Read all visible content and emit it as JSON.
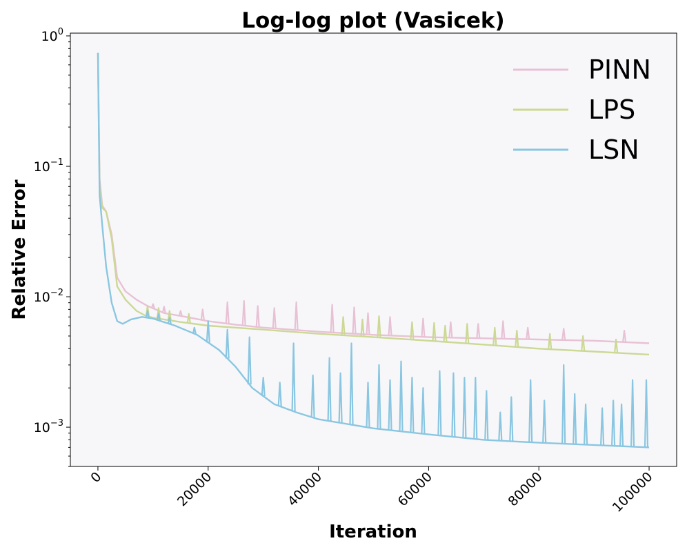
{
  "chart_data": {
    "type": "line",
    "title": "Log-log plot (Vasicek)",
    "xlabel": "Iteration",
    "ylabel": "Relative Error",
    "xlim": [
      -5000,
      105000
    ],
    "ylim": [
      0.0005,
      1.05
    ],
    "yscale": "log",
    "grid": false,
    "legend_position": "top-right",
    "x_ticks": [
      "0",
      "20000",
      "40000",
      "60000",
      "80000",
      "100000"
    ],
    "y_ticks": [
      {
        "base": "10",
        "exp": "0"
      },
      {
        "base": "10",
        "exp": "−1"
      },
      {
        "base": "10",
        "exp": "−2"
      },
      {
        "base": "10",
        "exp": "−3"
      }
    ],
    "series": [
      {
        "name": "PINN",
        "color": "#e8c1d5",
        "x": [
          0,
          300,
          800,
          1500,
          2500,
          3500,
          5000,
          7000,
          9000,
          12000,
          16000,
          20000,
          25000,
          30000,
          35000,
          40000,
          50000,
          60000,
          70000,
          80000,
          90000,
          100000
        ],
        "y": [
          0.74,
          0.08,
          0.05,
          0.045,
          0.03,
          0.014,
          0.011,
          0.0095,
          0.0085,
          0.0075,
          0.007,
          0.0065,
          0.0061,
          0.0058,
          0.0056,
          0.0054,
          0.0051,
          0.0049,
          0.0048,
          0.0047,
          0.0046,
          0.0044
        ],
        "spikes": [
          [
            10000,
            0.0088
          ],
          [
            12000,
            0.0084
          ],
          [
            15000,
            0.0078
          ],
          [
            19000,
            0.008
          ],
          [
            23500,
            0.0091
          ],
          [
            26500,
            0.0093
          ],
          [
            29000,
            0.0085
          ],
          [
            32000,
            0.0082
          ],
          [
            36000,
            0.0091
          ],
          [
            42500,
            0.0087
          ],
          [
            46500,
            0.0083
          ],
          [
            49000,
            0.0075
          ],
          [
            53000,
            0.007
          ],
          [
            59000,
            0.0068
          ],
          [
            64000,
            0.0064
          ],
          [
            69000,
            0.0062
          ],
          [
            73500,
            0.0065
          ],
          [
            78000,
            0.0058
          ],
          [
            84500,
            0.0057
          ],
          [
            95500,
            0.0055
          ]
        ]
      },
      {
        "name": "LPS",
        "color": "#ccd894",
        "x": [
          0,
          300,
          800,
          1500,
          2500,
          3500,
          5000,
          7000,
          8500,
          10000,
          15000,
          20000,
          30000,
          40000,
          50000,
          60000,
          70000,
          80000,
          90000,
          100000
        ],
        "y": [
          0.74,
          0.07,
          0.048,
          0.045,
          0.028,
          0.012,
          0.0095,
          0.0078,
          0.0072,
          0.0069,
          0.0064,
          0.006,
          0.0056,
          0.0052,
          0.0049,
          0.0046,
          0.0043,
          0.004,
          0.0038,
          0.0036
        ],
        "spikes": [
          [
            9000,
            0.0085
          ],
          [
            11000,
            0.0082
          ],
          [
            13000,
            0.0078
          ],
          [
            16500,
            0.0074
          ],
          [
            44500,
            0.007
          ],
          [
            48000,
            0.0067
          ],
          [
            51000,
            0.0071
          ],
          [
            57000,
            0.0064
          ],
          [
            61000,
            0.0063
          ],
          [
            63000,
            0.006
          ],
          [
            67000,
            0.0062
          ],
          [
            72000,
            0.0058
          ],
          [
            76000,
            0.0055
          ],
          [
            82000,
            0.0052
          ],
          [
            88000,
            0.005
          ],
          [
            94000,
            0.0047
          ]
        ]
      },
      {
        "name": "LSN",
        "color": "#8ac6e1",
        "x": [
          0,
          300,
          800,
          1500,
          2500,
          3500,
          4500,
          6000,
          8000,
          10000,
          14000,
          18000,
          22000,
          25000,
          28000,
          32000,
          36000,
          40000,
          50000,
          60000,
          70000,
          80000,
          90000,
          100000
        ],
        "y": [
          0.74,
          0.06,
          0.035,
          0.017,
          0.009,
          0.0065,
          0.0062,
          0.0067,
          0.007,
          0.0068,
          0.006,
          0.0051,
          0.0039,
          0.0029,
          0.002,
          0.0015,
          0.0013,
          0.00115,
          0.00098,
          0.00088,
          0.0008,
          0.00076,
          0.00073,
          0.0007
        ],
        "spikes": [
          [
            9000,
            0.0078
          ],
          [
            11000,
            0.0074
          ],
          [
            13000,
            0.0069
          ],
          [
            17500,
            0.0058
          ],
          [
            20000,
            0.0065
          ],
          [
            23500,
            0.0056
          ],
          [
            27500,
            0.0049
          ],
          [
            30000,
            0.0024
          ],
          [
            33000,
            0.0022
          ],
          [
            35500,
            0.0044
          ],
          [
            39000,
            0.0025
          ],
          [
            42000,
            0.0034
          ],
          [
            44000,
            0.0026
          ],
          [
            46000,
            0.0044
          ],
          [
            49000,
            0.0022
          ],
          [
            51000,
            0.003
          ],
          [
            53000,
            0.0023
          ],
          [
            55000,
            0.0032
          ],
          [
            57000,
            0.0024
          ],
          [
            59000,
            0.002
          ],
          [
            62000,
            0.0027
          ],
          [
            64500,
            0.0026
          ],
          [
            66500,
            0.0024
          ],
          [
            68500,
            0.0024
          ],
          [
            70500,
            0.0019
          ],
          [
            73000,
            0.0013
          ],
          [
            75000,
            0.0017
          ],
          [
            78500,
            0.0023
          ],
          [
            81000,
            0.0016
          ],
          [
            84500,
            0.003
          ],
          [
            86500,
            0.0018
          ],
          [
            88500,
            0.0015
          ],
          [
            91500,
            0.0014
          ],
          [
            93500,
            0.0016
          ],
          [
            95000,
            0.0015
          ],
          [
            97000,
            0.0023
          ],
          [
            99500,
            0.0023
          ]
        ]
      }
    ]
  }
}
